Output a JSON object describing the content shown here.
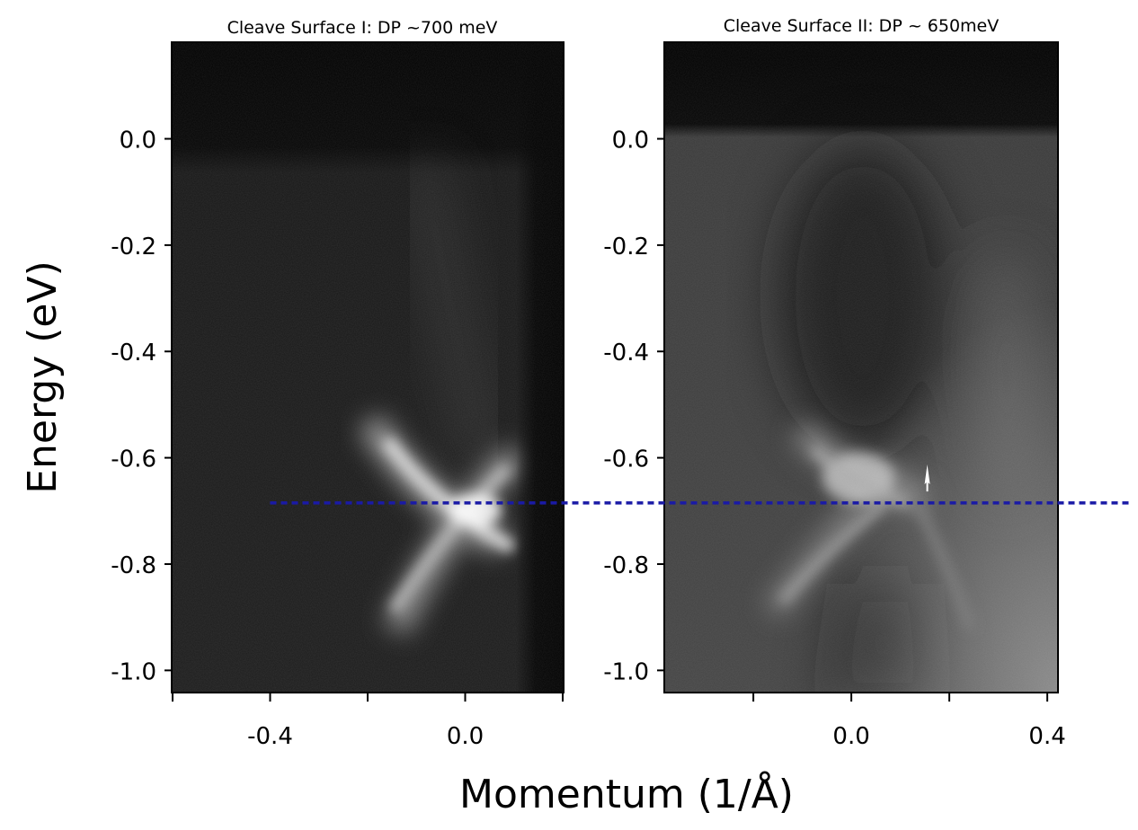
{
  "chart_data": {
    "type": "heatmap",
    "ylabel": "Energy (eV)",
    "xlabel": "Momentum (1/Å)",
    "y_ticks": [
      "0.0",
      "-0.2",
      "-0.4",
      "-0.6",
      "-0.8",
      "-1.0"
    ],
    "y_tick_values": [
      0.0,
      -0.2,
      -0.4,
      -0.6,
      -0.8,
      -1.0
    ],
    "ylim": [
      -1.04,
      0.18
    ],
    "reference_line": {
      "y": -0.685,
      "style": "dashed",
      "color": "#1a1aa6"
    },
    "colormap": "grayscale",
    "panels": [
      {
        "title": "Cleave Surface I: DP ~700 meV",
        "xlim": [
          -0.6,
          0.2
        ],
        "x_ticks": [
          "-0.4",
          "0.0"
        ],
        "x_tick_values": [
          -0.4,
          0.0
        ],
        "minor_tick_values": [
          -0.6,
          -0.2,
          0.2
        ],
        "dirac_point": {
          "k": 0.02,
          "energy": -0.68
        }
      },
      {
        "title": "Cleave Surface II: DP ~ 650meV",
        "xlim": [
          -0.38,
          0.42
        ],
        "x_ticks": [
          "0.0",
          "0.4"
        ],
        "x_tick_values": [
          0.0,
          0.4
        ],
        "minor_tick_values": [
          -0.2,
          0.2
        ],
        "dirac_point": {
          "k": 0.02,
          "energy": -0.65
        },
        "marker": {
          "type": "arrow",
          "k": 0.155,
          "energy": -0.66
        }
      }
    ]
  }
}
